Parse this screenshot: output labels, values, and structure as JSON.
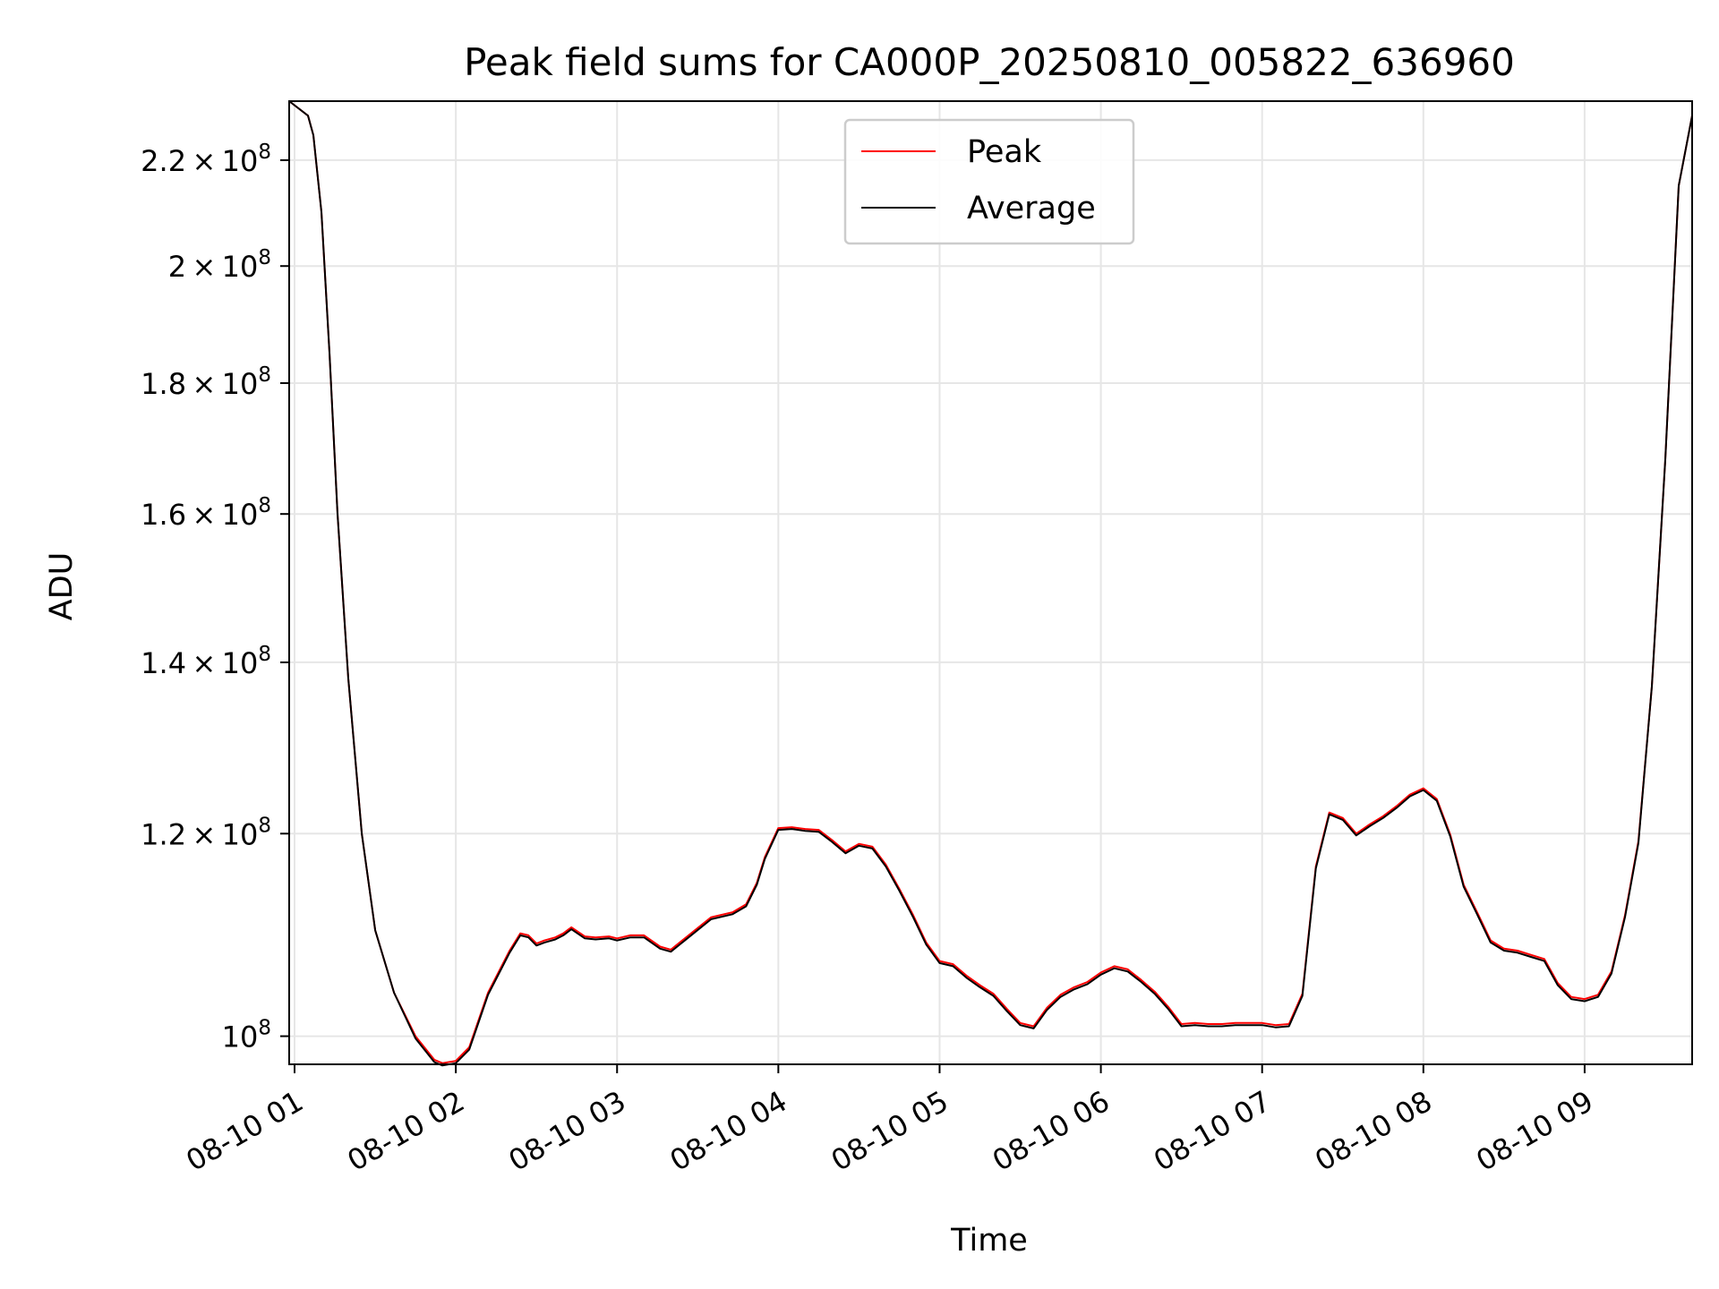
{
  "chart_data": {
    "type": "line",
    "title": "Peak field sums for CA000P_20250810_005822_636960",
    "xlabel": "Time",
    "ylabel": "ADU",
    "y_scale": "log",
    "x_range": [
      "2025-08-10 00:58",
      "2025-08-10 09:40"
    ],
    "ylim": [
      97500000,
      232000000
    ],
    "grid": true,
    "legend_position": "upper center",
    "x_ticks": [
      {
        "t": "2025-08-10 01:00",
        "label": "08-10 01"
      },
      {
        "t": "2025-08-10 02:00",
        "label": "08-10 02"
      },
      {
        "t": "2025-08-10 03:00",
        "label": "08-10 03"
      },
      {
        "t": "2025-08-10 04:00",
        "label": "08-10 04"
      },
      {
        "t": "2025-08-10 05:00",
        "label": "08-10 05"
      },
      {
        "t": "2025-08-10 06:00",
        "label": "08-10 06"
      },
      {
        "t": "2025-08-10 07:00",
        "label": "08-10 07"
      },
      {
        "t": "2025-08-10 08:00",
        "label": "08-10 08"
      },
      {
        "t": "2025-08-10 09:00",
        "label": "08-10 09"
      }
    ],
    "y_ticks": [
      {
        "value": 100000000,
        "mantissa": "",
        "exp": "8"
      },
      {
        "value": 120000000,
        "mantissa": "1.2",
        "exp": "8"
      },
      {
        "value": 140000000,
        "mantissa": "1.4",
        "exp": "8"
      },
      {
        "value": 160000000,
        "mantissa": "1.6",
        "exp": "8"
      },
      {
        "value": 180000000,
        "mantissa": "1.8",
        "exp": "8"
      },
      {
        "value": 200000000,
        "mantissa": "2",
        "exp": "8"
      },
      {
        "value": 220000000,
        "mantissa": "2.2",
        "exp": "8"
      }
    ],
    "series": [
      {
        "name": "Peak",
        "color": "#ff0000",
        "x": [
          "2025-08-10 00:58",
          "2025-08-10 01:05",
          "2025-08-10 01:07",
          "2025-08-10 01:10",
          "2025-08-10 01:13",
          "2025-08-10 01:16",
          "2025-08-10 01:20",
          "2025-08-10 01:25",
          "2025-08-10 01:30",
          "2025-08-10 01:37",
          "2025-08-10 01:45",
          "2025-08-10 01:52",
          "2025-08-10 01:55",
          "2025-08-10 02:00",
          "2025-08-10 02:05",
          "2025-08-10 02:12",
          "2025-08-10 02:20",
          "2025-08-10 02:24",
          "2025-08-10 02:27",
          "2025-08-10 02:30",
          "2025-08-10 02:33",
          "2025-08-10 02:37",
          "2025-08-10 02:40",
          "2025-08-10 02:43",
          "2025-08-10 02:48",
          "2025-08-10 02:52",
          "2025-08-10 02:57",
          "2025-08-10 03:00",
          "2025-08-10 03:05",
          "2025-08-10 03:10",
          "2025-08-10 03:16",
          "2025-08-10 03:20",
          "2025-08-10 03:28",
          "2025-08-10 03:35",
          "2025-08-10 03:43",
          "2025-08-10 03:48",
          "2025-08-10 03:52",
          "2025-08-10 03:55",
          "2025-08-10 04:00",
          "2025-08-10 04:05",
          "2025-08-10 04:10",
          "2025-08-10 04:15",
          "2025-08-10 04:20",
          "2025-08-10 04:25",
          "2025-08-10 04:30",
          "2025-08-10 04:35",
          "2025-08-10 04:40",
          "2025-08-10 04:45",
          "2025-08-10 04:50",
          "2025-08-10 04:55",
          "2025-08-10 05:00",
          "2025-08-10 05:05",
          "2025-08-10 05:10",
          "2025-08-10 05:15",
          "2025-08-10 05:20",
          "2025-08-10 05:25",
          "2025-08-10 05:30",
          "2025-08-10 05:35",
          "2025-08-10 05:40",
          "2025-08-10 05:45",
          "2025-08-10 05:50",
          "2025-08-10 05:55",
          "2025-08-10 06:00",
          "2025-08-10 06:05",
          "2025-08-10 06:10",
          "2025-08-10 06:15",
          "2025-08-10 06:20",
          "2025-08-10 06:25",
          "2025-08-10 06:30",
          "2025-08-10 06:35",
          "2025-08-10 06:40",
          "2025-08-10 06:45",
          "2025-08-10 06:50",
          "2025-08-10 06:55",
          "2025-08-10 07:00",
          "2025-08-10 07:05",
          "2025-08-10 07:10",
          "2025-08-10 07:15",
          "2025-08-10 07:20",
          "2025-08-10 07:25",
          "2025-08-10 07:30",
          "2025-08-10 07:35",
          "2025-08-10 07:40",
          "2025-08-10 07:45",
          "2025-08-10 07:50",
          "2025-08-10 07:55",
          "2025-08-10 08:00",
          "2025-08-10 08:05",
          "2025-08-10 08:10",
          "2025-08-10 08:15",
          "2025-08-10 08:20",
          "2025-08-10 08:25",
          "2025-08-10 08:30",
          "2025-08-10 08:35",
          "2025-08-10 08:40",
          "2025-08-10 08:45",
          "2025-08-10 08:50",
          "2025-08-10 08:55",
          "2025-08-10 09:00",
          "2025-08-10 09:05",
          "2025-08-10 09:10",
          "2025-08-10 09:15",
          "2025-08-10 09:20",
          "2025-08-10 09:25",
          "2025-08-10 09:30",
          "2025-08-10 09:35",
          "2025-08-10 09:40"
        ],
        "values": [
          232000000,
          229000000,
          225000000,
          210000000,
          185000000,
          160000000,
          138000000,
          120000000,
          110000000,
          104000000,
          100000000,
          97900000,
          97600000,
          97800000,
          99000000,
          104000000,
          108000000,
          109700000,
          109500000,
          108700000,
          109000000,
          109300000,
          109700000,
          110300000,
          109400000,
          109300000,
          109400000,
          109200000,
          109500000,
          109500000,
          108400000,
          108100000,
          109800000,
          111300000,
          111800000,
          112600000,
          114800000,
          117500000,
          120600000,
          120700000,
          120500000,
          120400000,
          119300000,
          118100000,
          118900000,
          118600000,
          116700000,
          114200000,
          111600000,
          108800000,
          107000000,
          106700000,
          105600000,
          104700000,
          103900000,
          102500000,
          101200000,
          100900000,
          102600000,
          103800000,
          104500000,
          105000000,
          105900000,
          106500000,
          106200000,
          105200000,
          104100000,
          102700000,
          101100000,
          101200000,
          101100000,
          101100000,
          101200000,
          101200000,
          101200000,
          101000000,
          101100000,
          103900000,
          116500000,
          122300000,
          121700000,
          120000000,
          121000000,
          121900000,
          123000000,
          124300000,
          125000000,
          123800000,
          119900000,
          114600000,
          111800000,
          109000000,
          108200000,
          108000000,
          107600000,
          107200000,
          104900000,
          103600000,
          103400000,
          103800000,
          106000000,
          111500000,
          119200000,
          137000000,
          168000000,
          215000000,
          229000000
        ]
      },
      {
        "name": "Average",
        "color": "#000000",
        "x": [
          "2025-08-10 00:58",
          "2025-08-10 01:05",
          "2025-08-10 01:07",
          "2025-08-10 01:10",
          "2025-08-10 01:13",
          "2025-08-10 01:16",
          "2025-08-10 01:20",
          "2025-08-10 01:25",
          "2025-08-10 01:30",
          "2025-08-10 01:37",
          "2025-08-10 01:45",
          "2025-08-10 01:52",
          "2025-08-10 01:55",
          "2025-08-10 02:00",
          "2025-08-10 02:05",
          "2025-08-10 02:12",
          "2025-08-10 02:20",
          "2025-08-10 02:24",
          "2025-08-10 02:27",
          "2025-08-10 02:30",
          "2025-08-10 02:33",
          "2025-08-10 02:37",
          "2025-08-10 02:40",
          "2025-08-10 02:43",
          "2025-08-10 02:48",
          "2025-08-10 02:52",
          "2025-08-10 02:57",
          "2025-08-10 03:00",
          "2025-08-10 03:05",
          "2025-08-10 03:10",
          "2025-08-10 03:16",
          "2025-08-10 03:20",
          "2025-08-10 03:28",
          "2025-08-10 03:35",
          "2025-08-10 03:43",
          "2025-08-10 03:48",
          "2025-08-10 03:52",
          "2025-08-10 03:55",
          "2025-08-10 04:00",
          "2025-08-10 04:05",
          "2025-08-10 04:10",
          "2025-08-10 04:15",
          "2025-08-10 04:20",
          "2025-08-10 04:25",
          "2025-08-10 04:30",
          "2025-08-10 04:35",
          "2025-08-10 04:40",
          "2025-08-10 04:45",
          "2025-08-10 04:50",
          "2025-08-10 04:55",
          "2025-08-10 05:00",
          "2025-08-10 05:05",
          "2025-08-10 05:10",
          "2025-08-10 05:15",
          "2025-08-10 05:20",
          "2025-08-10 05:25",
          "2025-08-10 05:30",
          "2025-08-10 05:35",
          "2025-08-10 05:40",
          "2025-08-10 05:45",
          "2025-08-10 05:50",
          "2025-08-10 05:55",
          "2025-08-10 06:00",
          "2025-08-10 06:05",
          "2025-08-10 06:10",
          "2025-08-10 06:15",
          "2025-08-10 06:20",
          "2025-08-10 06:25",
          "2025-08-10 06:30",
          "2025-08-10 06:35",
          "2025-08-10 06:40",
          "2025-08-10 06:45",
          "2025-08-10 06:50",
          "2025-08-10 06:55",
          "2025-08-10 07:00",
          "2025-08-10 07:05",
          "2025-08-10 07:10",
          "2025-08-10 07:15",
          "2025-08-10 07:20",
          "2025-08-10 07:25",
          "2025-08-10 07:30",
          "2025-08-10 07:35",
          "2025-08-10 07:40",
          "2025-08-10 07:45",
          "2025-08-10 07:50",
          "2025-08-10 07:55",
          "2025-08-10 08:00",
          "2025-08-10 08:05",
          "2025-08-10 08:10",
          "2025-08-10 08:15",
          "2025-08-10 08:20",
          "2025-08-10 08:25",
          "2025-08-10 08:30",
          "2025-08-10 08:35",
          "2025-08-10 08:40",
          "2025-08-10 08:45",
          "2025-08-10 08:50",
          "2025-08-10 08:55",
          "2025-08-10 09:00",
          "2025-08-10 09:05",
          "2025-08-10 09:10",
          "2025-08-10 09:15",
          "2025-08-10 09:20",
          "2025-08-10 09:25",
          "2025-08-10 09:30",
          "2025-08-10 09:35",
          "2025-08-10 09:40"
        ],
        "values": [
          232000000,
          229000000,
          225000000,
          210000000,
          185000000,
          160000000,
          138000000,
          120000000,
          110000000,
          104000000,
          99800000,
          97700000,
          97400000,
          97600000,
          98800000,
          103800000,
          107800000,
          109500000,
          109300000,
          108500000,
          108800000,
          109100000,
          109500000,
          110100000,
          109200000,
          109100000,
          109200000,
          109000000,
          109300000,
          109300000,
          108200000,
          107900000,
          109600000,
          111100000,
          111600000,
          112400000,
          114600000,
          117300000,
          120400000,
          120500000,
          120300000,
          120200000,
          119100000,
          117900000,
          118700000,
          118400000,
          116500000,
          114000000,
          111400000,
          108600000,
          106800000,
          106500000,
          105400000,
          104500000,
          103700000,
          102300000,
          101000000,
          100700000,
          102400000,
          103600000,
          104300000,
          104800000,
          105700000,
          106300000,
          106000000,
          105000000,
          103900000,
          102500000,
          100900000,
          101000000,
          100900000,
          100900000,
          101000000,
          101000000,
          101000000,
          100800000,
          100900000,
          103700000,
          116300000,
          122100000,
          121500000,
          119800000,
          120800000,
          121700000,
          122800000,
          124100000,
          124800000,
          123600000,
          119700000,
          114400000,
          111600000,
          108800000,
          108000000,
          107800000,
          107400000,
          107000000,
          104700000,
          103400000,
          103200000,
          103600000,
          105800000,
          111300000,
          119000000,
          137000000,
          168000000,
          215000000,
          229000000
        ]
      }
    ]
  }
}
